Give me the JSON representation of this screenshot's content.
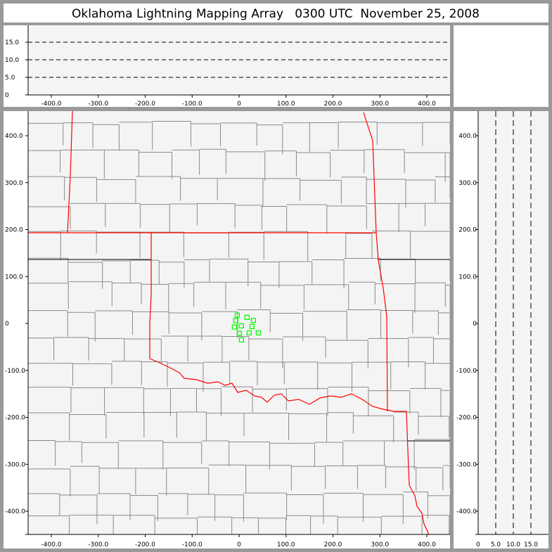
{
  "title": "Oklahoma Lightning Mapping Array   0300 UTC  November 25, 2008",
  "colors": {
    "frame": "#999999",
    "plot_bg": "#f4f4f4",
    "county": "#8a8a8a",
    "state_border": "#ff0000",
    "lightning": "#00ff00"
  },
  "chart_data": [
    {
      "type": "scatter",
      "panel": "altitude-vs-x",
      "xlim": [
        -450,
        450
      ],
      "ylim": [
        0,
        20
      ],
      "xticks": [
        "-400.0",
        "-300.0",
        "-200.0",
        "-100.0",
        "0",
        "100.0",
        "200.0",
        "300.0",
        "400.0"
      ],
      "xtick_values": [
        -400,
        -300,
        -200,
        -100,
        0,
        100,
        200,
        300,
        400
      ],
      "yticks": [
        "0",
        "5.0",
        "10.0",
        "15.0"
      ],
      "ytick_values": [
        0,
        5,
        10,
        15
      ],
      "grid": "dashed at 5, 10, 15",
      "points": []
    },
    {
      "type": "scatter",
      "panel": "plan-view",
      "xlim": [
        -450,
        450
      ],
      "ylim": [
        -450,
        452
      ],
      "xticks": [
        "-400.0",
        "-300.0",
        "-200.0",
        "-100.0",
        "0",
        "100.0",
        "200.0",
        "300.0",
        "400.0"
      ],
      "xtick_values": [
        -400,
        -300,
        -200,
        -100,
        0,
        100,
        200,
        300,
        400
      ],
      "yticks": [
        "-400.0",
        "-300.0",
        "-200.0",
        "-100.0",
        "0",
        "100.0",
        "200.0",
        "300.0",
        "400.0"
      ],
      "ytick_values": [
        -400,
        -300,
        -200,
        -100,
        0,
        100,
        200,
        300,
        400
      ],
      "marker": "open-square",
      "points": [
        {
          "x": -4,
          "y": 17.5
        },
        {
          "x": 17,
          "y": 13
        },
        {
          "x": 30.5,
          "y": 6.5
        },
        {
          "x": -7,
          "y": 6
        },
        {
          "x": 5,
          "y": -5
        },
        {
          "x": 27.5,
          "y": -6.5
        },
        {
          "x": -10,
          "y": -7.5
        },
        {
          "x": 0.5,
          "y": -21
        },
        {
          "x": 21.5,
          "y": -20
        },
        {
          "x": 41,
          "y": -20
        },
        {
          "x": 5,
          "y": -35
        }
      ]
    },
    {
      "type": "scatter",
      "panel": "y-vs-altitude",
      "xlim": [
        0,
        20
      ],
      "ylim": [
        -450,
        452
      ],
      "xticks": [
        "0",
        "5.0",
        "10.0",
        "15.0"
      ],
      "xtick_values": [
        0,
        5,
        10,
        15
      ],
      "yticks": [
        "-400.0",
        "-300.0",
        "-200.0",
        "-100.0",
        "0",
        "100.0",
        "200.0",
        "300.0",
        "400.0"
      ],
      "ytick_values": [
        -400,
        -300,
        -200,
        -100,
        0,
        100,
        200,
        300,
        400
      ],
      "grid": "dashed at 5, 10, 15",
      "points": []
    }
  ]
}
